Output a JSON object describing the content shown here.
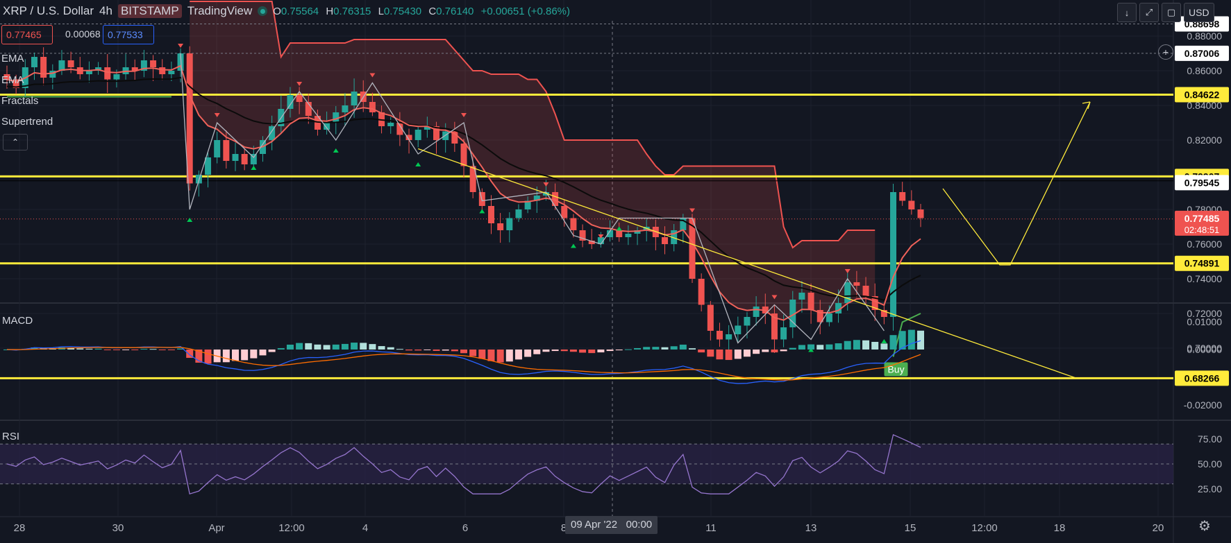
{
  "header": {
    "symbol": "XRP / U.S. Dollar",
    "interval": "4h",
    "exchange": "BITSTAMP",
    "platform": "TradingView",
    "open_label": "O",
    "open": "0.75564",
    "high_label": "H",
    "high": "0.76315",
    "low_label": "L",
    "low": "0.75430",
    "close_label": "C",
    "close": "0.76140",
    "change": "+0.00651 (+0.86%)"
  },
  "quote": {
    "bid": "0.77465",
    "spread": "0.00068",
    "ask": "0.77533"
  },
  "indicators": [
    "EMA",
    "EMA",
    "Fractals",
    "Supertrend"
  ],
  "toolbar": {
    "currency": "USD",
    "collapse_glyph": "⌃",
    "down_glyph": "↓",
    "expand_glyph": "⤢",
    "screen_glyph": "▢",
    "add_glyph": "+",
    "gear_glyph": "⚙"
  },
  "crosshair": {
    "date": "09 Apr '22",
    "time": "00:00"
  },
  "colors": {
    "bg": "#131722",
    "up": "#26a69a",
    "down": "#ef5350",
    "yellow": "#ffeb3b",
    "ema_fast": "#f0625a",
    "ema_slow": "#0b0b0b",
    "macd": "#2962ff",
    "signal": "#ff6d00",
    "rsi": "#9575cd",
    "rsi_band": "#2a2346",
    "grid": "#1e222d"
  },
  "chart_data": [
    {
      "type": "candlestick",
      "title": "XRP / U.S. Dollar 4h BITSTAMP",
      "y_ticks": [
        "0.88000",
        "0.86000",
        "0.84000",
        "0.82000",
        "0.80000",
        "0.78000",
        "0.76000",
        "0.74000",
        "0.72000",
        "0.70000"
      ],
      "x_ticks": [
        "28",
        "30",
        "Apr",
        "12:00",
        "4",
        "6",
        "8",
        "11",
        "13",
        "15",
        "12:00",
        "18",
        "20"
      ],
      "ylim": [
        0.68,
        0.89
      ],
      "price_labels": [
        {
          "value": "0.88698",
          "style": "white"
        },
        {
          "value": "0.87006",
          "style": "white"
        },
        {
          "value": "0.84622",
          "style": "yellow"
        },
        {
          "value": "0.79907",
          "style": "yellow"
        },
        {
          "value": "0.79545",
          "style": "white"
        },
        {
          "value": "0.77485",
          "style": "red"
        },
        {
          "value": "0.74891",
          "style": "yellow"
        },
        {
          "value": "0.68266",
          "style": "yellow"
        }
      ],
      "countdown": "02:48:51",
      "horizontal_levels": [
        0.84622,
        0.79907,
        0.74891,
        0.68266
      ],
      "dashed_levels": [
        0.88698,
        0.87006
      ],
      "signal_label": "Buy",
      "series_close": [
        0.855,
        0.85,
        0.862,
        0.868,
        0.856,
        0.86,
        0.866,
        0.862,
        0.858,
        0.86,
        0.862,
        0.855,
        0.858,
        0.862,
        0.86,
        0.866,
        0.862,
        0.858,
        0.86,
        0.87,
        0.795,
        0.8,
        0.81,
        0.82,
        0.808,
        0.812,
        0.806,
        0.812,
        0.82,
        0.828,
        0.838,
        0.846,
        0.842,
        0.834,
        0.826,
        0.83,
        0.836,
        0.84,
        0.848,
        0.842,
        0.836,
        0.828,
        0.83,
        0.823,
        0.82,
        0.826,
        0.828,
        0.82,
        0.825,
        0.818,
        0.805,
        0.79,
        0.782,
        0.772,
        0.768,
        0.775,
        0.78,
        0.785,
        0.788,
        0.79,
        0.782,
        0.775,
        0.768,
        0.762,
        0.76,
        0.764,
        0.768,
        0.764,
        0.766,
        0.768,
        0.77,
        0.764,
        0.76,
        0.768,
        0.775,
        0.74,
        0.725,
        0.71,
        0.705,
        0.708,
        0.713,
        0.718,
        0.724,
        0.72,
        0.705,
        0.712,
        0.728,
        0.732,
        0.722,
        0.715,
        0.72,
        0.726,
        0.738,
        0.736,
        0.73,
        0.722,
        0.718,
        0.79,
        0.785,
        0.78,
        0.775
      ]
    },
    {
      "type": "line",
      "title": "MACD",
      "y_ticks": [
        "0.01000",
        "0.00000",
        "-0.01000",
        "-0.02000"
      ],
      "series": [
        {
          "name": "MACD"
        },
        {
          "name": "Signal"
        },
        {
          "name": "Histogram"
        }
      ]
    },
    {
      "type": "line",
      "title": "RSI",
      "y_ticks": [
        "75.00",
        "50.00",
        "25.00"
      ],
      "bands": [
        30,
        70
      ],
      "series": [
        {
          "name": "RSI"
        }
      ]
    }
  ]
}
